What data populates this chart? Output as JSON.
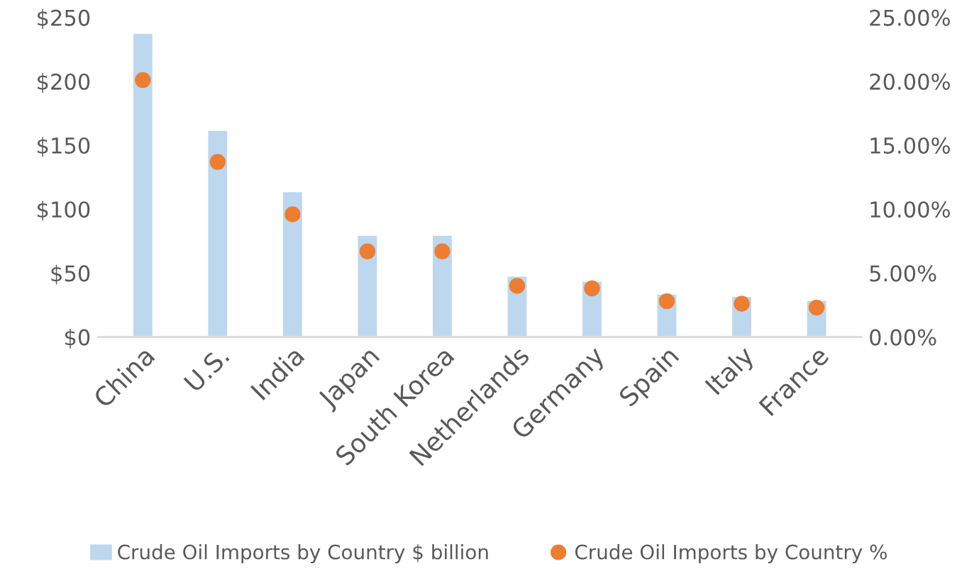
{
  "chart_data": {
    "type": "bar",
    "categories": [
      "China",
      "U.S.",
      "India",
      "Japan",
      "South Korea",
      "Netherlands",
      "Germany",
      "Spain",
      "Italy",
      "France"
    ],
    "series": [
      {
        "name": "Crude Oil Imports by Country $ billion",
        "color": "#bdd7ee",
        "values": [
          238,
          162,
          114,
          80,
          80,
          48,
          44,
          34,
          32,
          29
        ]
      },
      {
        "name": "Crude Oil Imports by Country %",
        "type": "scatter",
        "axis": "y2",
        "color": "#ed7d31",
        "values": [
          20.1,
          13.7,
          9.6,
          6.7,
          6.7,
          4.0,
          3.8,
          2.8,
          2.6,
          2.3
        ]
      }
    ],
    "ylim": [
      0,
      250
    ],
    "yticks": [
      {
        "value": 0,
        "label": "$0"
      },
      {
        "value": 50,
        "label": "$50"
      },
      {
        "value": 100,
        "label": "$100"
      },
      {
        "value": 150,
        "label": "$150"
      },
      {
        "value": 200,
        "label": "$200"
      },
      {
        "value": 250,
        "label": "$250"
      }
    ],
    "y2lim": [
      0,
      25
    ],
    "y2ticks": [
      {
        "value": 0,
        "label": "0.00%"
      },
      {
        "value": 5,
        "label": "5.00%"
      },
      {
        "value": 10,
        "label": "10.00%"
      },
      {
        "value": 15,
        "label": "15.00%"
      },
      {
        "value": 20,
        "label": "20.00%"
      },
      {
        "value": 25,
        "label": "25.00%"
      }
    ],
    "grid": false,
    "legend": "bottom",
    "marker": "circle"
  }
}
